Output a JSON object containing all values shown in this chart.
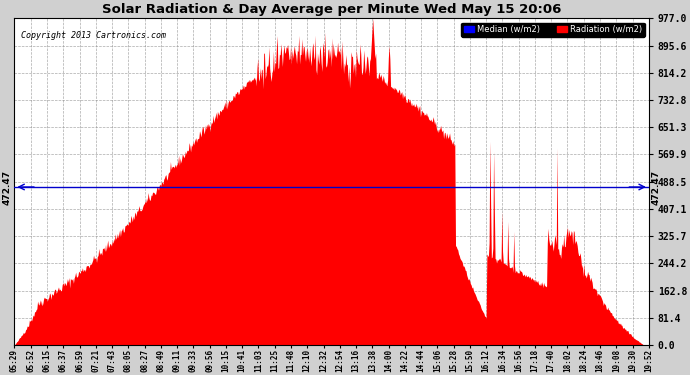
{
  "title": "Solar Radiation & Day Average per Minute Wed May 15 20:06",
  "copyright": "Copyright 2013 Cartronics.com",
  "median_value": 472.47,
  "y_max": 977.0,
  "y_min": 0.0,
  "y_ticks": [
    0.0,
    81.4,
    162.8,
    244.2,
    325.7,
    407.1,
    488.5,
    569.9,
    651.3,
    732.8,
    814.2,
    895.6,
    977.0
  ],
  "background_color": "#ffffff",
  "fill_color": "#ff0000",
  "median_line_color": "#0000cc",
  "grid_color": "#888888",
  "legend_median_color": "#0000ff",
  "legend_radiation_color": "#ff0000",
  "x_labels": [
    "05:29",
    "05:52",
    "06:15",
    "06:37",
    "06:59",
    "07:21",
    "07:43",
    "08:05",
    "08:27",
    "08:49",
    "09:11",
    "09:33",
    "09:56",
    "10:15",
    "10:41",
    "11:03",
    "11:25",
    "11:48",
    "12:10",
    "12:32",
    "12:54",
    "13:16",
    "13:38",
    "14:00",
    "14:22",
    "14:44",
    "15:06",
    "15:28",
    "15:50",
    "16:12",
    "16:34",
    "16:56",
    "17:18",
    "17:40",
    "18:02",
    "18:24",
    "18:46",
    "19:08",
    "19:30",
    "19:52"
  ],
  "num_points": 851,
  "seed": 42
}
